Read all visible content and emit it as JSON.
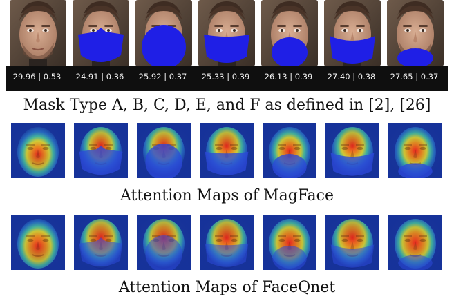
{
  "scores": [
    "29.96 | 0.53",
    "24.91 | 0.36",
    "25.92 | 0.37",
    "25.33 | 0.39",
    "26.13 | 0.39",
    "27.40 | 0.38",
    "27.65 | 0.37"
  ],
  "masks": [
    "none",
    "A",
    "B",
    "C",
    "D",
    "E",
    "F"
  ],
  "captions": {
    "masks": "Mask Type A, B, C, D, E, and F as defined in [2], [26]",
    "magface": "Attention Maps of MagFace",
    "faceqnet": "Attention Maps of FaceQnet"
  },
  "colors": {
    "mask": "#1f1fe6",
    "score_bg": "#0f0f0f",
    "score_text": "#f2f2f2"
  }
}
